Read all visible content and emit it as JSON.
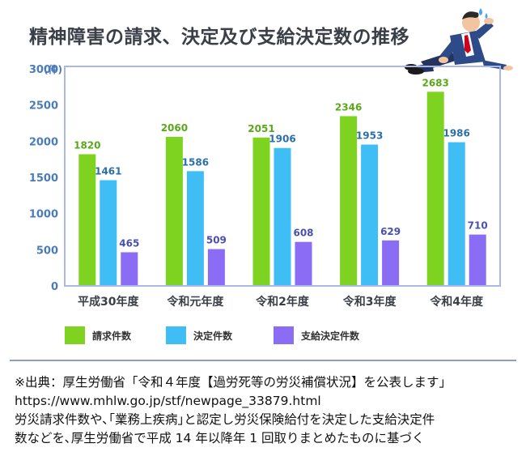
{
  "page": {
    "title": "精神障害の請求、決定及び支給決定数の推移"
  },
  "chart_data": {
    "type": "bar",
    "title": "精神障害の請求、決定及び支給決定数の推移",
    "ylabel": "(件)",
    "ylim": [
      0,
      3000
    ],
    "yticks": [
      0,
      500,
      1000,
      1500,
      2000,
      2500,
      3000
    ],
    "grid": false,
    "legend_position": "bottom",
    "categories": [
      "平成30年度",
      "令和元年度",
      "令和2年度",
      "令和3年度",
      "令和4年度"
    ],
    "series": [
      {
        "name": "請求件数",
        "color": "#7ed321",
        "label_color": "#5aa81a",
        "values": [
          1820,
          2060,
          2051,
          2346,
          2683
        ]
      },
      {
        "name": "決定件数",
        "color": "#3fbdf5",
        "label_color": "#2a6fa8",
        "values": [
          1461,
          1586,
          1906,
          1953,
          1986
        ]
      },
      {
        "name": "支給決定件数",
        "color": "#8a6cf5",
        "label_color": "#4a4fb0",
        "values": [
          465,
          509,
          608,
          629,
          710
        ]
      }
    ],
    "frame_color": "#a9b8e6",
    "axis_text_color": "#4a7cb8"
  },
  "source": {
    "lines": [
      "※出典：厚生労働省「令和４年度【過労死等の労災補償状況】を公表します」",
      "https://www.mhlw.go.jp/stf/newpage_33879.html",
      "労災請求件数や､｢業務上疾病｣と認定し労災保険給付を決定した支給決定件",
      "数などを､厚生労働省で平成 14 年以降年 1 回取りまとめたものに基づく"
    ]
  },
  "icons": {
    "figure": "stressed-businessman-illustration"
  }
}
